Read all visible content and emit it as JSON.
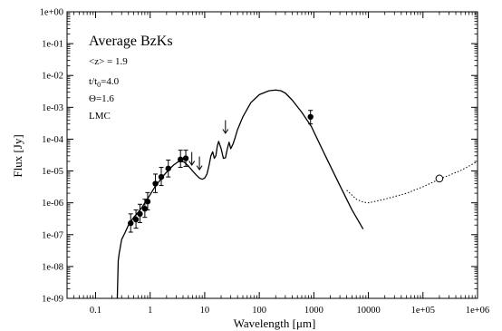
{
  "chart_data": {
    "type": "line",
    "xlabel": "Wavelength [μm]",
    "ylabel": "Flux [Jy]",
    "x_scale": "log",
    "y_scale": "log",
    "xlim": [
      0.03,
      1000000
    ],
    "ylim": [
      1e-09,
      1
    ],
    "grid": false,
    "x_ticks": [
      {
        "v": 0.1,
        "label": "0.1"
      },
      {
        "v": 1,
        "label": "1"
      },
      {
        "v": 10,
        "label": "10"
      },
      {
        "v": 100,
        "label": "100"
      },
      {
        "v": 1000,
        "label": "1000"
      },
      {
        "v": 10000,
        "label": "10000"
      },
      {
        "v": 100000,
        "label": "1e+05"
      },
      {
        "v": 1000000,
        "label": "1e+06"
      }
    ],
    "y_ticks": [
      {
        "v": 1,
        "label": "1e+00"
      },
      {
        "v": 0.1,
        "label": "1e-01"
      },
      {
        "v": 0.01,
        "label": "1e-02"
      },
      {
        "v": 0.001,
        "label": "1e-03"
      },
      {
        "v": 0.0001,
        "label": "1e-04"
      },
      {
        "v": 1e-05,
        "label": "1e-05"
      },
      {
        "v": 1e-06,
        "label": "1e-06"
      },
      {
        "v": 1e-07,
        "label": "1e-07"
      },
      {
        "v": 1e-08,
        "label": "1e-08"
      },
      {
        "v": 1e-09,
        "label": "1e-09"
      }
    ],
    "annotations": {
      "title": "Average BzKs",
      "z_left": "<z",
      "z_right": "> = 1.9",
      "age_t": "t/t",
      "age_sub": "0",
      "age_val": "=4.0",
      "theta": "Θ=1.6",
      "dust": "LMC"
    },
    "series": [
      {
        "style": "solid",
        "x": [
          0.25,
          0.26,
          0.27,
          0.3,
          0.35,
          0.4,
          0.5,
          0.6,
          0.7,
          0.8,
          1.0,
          1.2,
          1.5,
          1.8,
          2.2,
          2.7,
          3.2,
          3.6,
          4.2,
          5.0,
          6.0,
          7.0,
          8.0,
          9.0,
          10.0,
          11.0,
          12.0,
          13.0,
          14.0,
          15.0,
          16.0,
          17.0,
          18.0,
          20.0,
          22.0,
          24.0,
          26.0,
          28.0,
          30.0,
          33.0,
          36.0,
          40.0,
          50.0,
          70.0,
          100.0,
          150.0,
          200.0,
          250.0,
          300.0,
          400.0,
          600.0,
          900.0,
          1500.0,
          3000.0,
          5000.0,
          8000.0
        ],
        "y": [
          1e-09,
          1.5e-08,
          2.5e-08,
          7e-08,
          1.2e-07,
          2e-07,
          3.5e-07,
          5e-07,
          7e-07,
          1e-06,
          1.8e-06,
          3e-06,
          5e-06,
          7.5e-06,
          1.1e-05,
          1.55e-05,
          1.9e-05,
          2.05e-05,
          1.9e-05,
          1.45e-05,
          1e-05,
          7.5e-06,
          6e-06,
          5.5e-06,
          6e-06,
          8e-06,
          1.5e-05,
          3e-05,
          4e-05,
          2.5e-05,
          3e-05,
          6e-05,
          8.5e-05,
          5e-05,
          2.5e-05,
          2.6e-05,
          5e-05,
          8e-05,
          5e-05,
          7e-05,
          0.00011,
          0.0002,
          0.0005,
          0.0014,
          0.0025,
          0.0033,
          0.0035,
          0.0033,
          0.0028,
          0.0017,
          0.0007,
          0.00025,
          4e-05,
          3.5e-06,
          6e-07,
          1.5e-07
        ]
      },
      {
        "style": "dotted",
        "x": [
          4000,
          6000,
          8000,
          10000,
          20000,
          50000,
          100000,
          200000,
          500000,
          1000000
        ],
        "y": [
          2.5e-06,
          1.3e-06,
          1.05e-06,
          1e-06,
          1.3e-06,
          2e-06,
          3.2e-06,
          5.5e-06,
          1.05e-05,
          2e-05
        ]
      }
    ],
    "points": [
      {
        "x": 0.44,
        "y": 2.3e-07,
        "lo": 1.2e-07,
        "hi": 4.5e-07
      },
      {
        "x": 0.55,
        "y": 3e-07,
        "lo": 1.6e-07,
        "hi": 6e-07
      },
      {
        "x": 0.65,
        "y": 4.5e-07,
        "lo": 2.4e-07,
        "hi": 9e-07
      },
      {
        "x": 0.8,
        "y": 6.5e-07,
        "lo": 3.5e-07,
        "hi": 1.3e-06
      },
      {
        "x": 0.9,
        "y": 1.1e-06,
        "lo": 6e-07,
        "hi": 2.1e-06
      },
      {
        "x": 1.25,
        "y": 4e-06,
        "lo": 2.1e-06,
        "hi": 8e-06
      },
      {
        "x": 1.6,
        "y": 6.5e-06,
        "lo": 3.5e-06,
        "hi": 1.3e-05
      },
      {
        "x": 2.15,
        "y": 1.2e-05,
        "lo": 6.5e-06,
        "hi": 2.2e-05
      },
      {
        "x": 3.6,
        "y": 2.3e-05,
        "lo": 1.3e-05,
        "hi": 4.5e-05
      },
      {
        "x": 4.5,
        "y": 2.5e-05,
        "lo": 1.4e-05,
        "hi": 4.5e-05
      },
      {
        "x": 870,
        "y": 0.0005,
        "lo": 0.0003,
        "hi": 0.0008
      }
    ],
    "upper_limits": [
      {
        "x": 5.8,
        "y": 2.5e-05
      },
      {
        "x": 8.0,
        "y": 1.8e-05
      },
      {
        "x": 24,
        "y": 0.00025
      }
    ],
    "open_points": [
      {
        "x": 200000,
        "y": 5.8e-06
      }
    ]
  }
}
